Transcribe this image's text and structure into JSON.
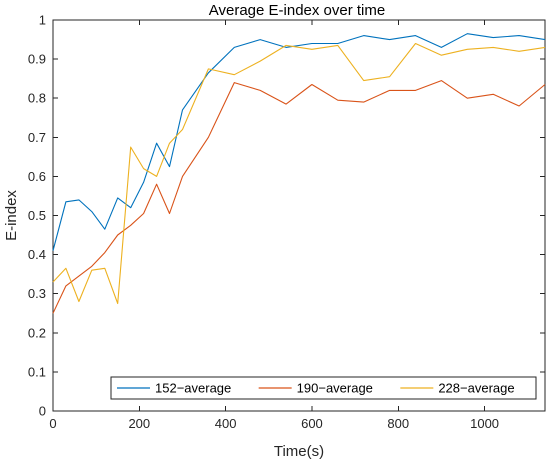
{
  "chart_data": {
    "type": "line",
    "title": "Average E-index over time",
    "xlabel": "Time(s)",
    "ylabel": "E-index",
    "xlim": [
      0,
      1140
    ],
    "ylim": [
      0,
      1
    ],
    "xticks": [
      0,
      200,
      400,
      600,
      800,
      1000
    ],
    "yticks": [
      0,
      0.1,
      0.2,
      0.3,
      0.4,
      0.5,
      0.6,
      0.7,
      0.8,
      0.9,
      1
    ],
    "xtick_labels": [
      "0",
      "200",
      "400",
      "600",
      "800",
      "1000"
    ],
    "ytick_labels": [
      "0",
      "0.1",
      "0.2",
      "0.3",
      "0.4",
      "0.5",
      "0.6",
      "0.7",
      "0.8",
      "0.9",
      "1"
    ],
    "grid": false,
    "legend_position": "bottom-right",
    "series": [
      {
        "name": "152−average",
        "color": "#0072BD",
        "x": [
          0,
          30,
          60,
          90,
          120,
          150,
          180,
          210,
          240,
          270,
          300,
          360,
          420,
          480,
          540,
          600,
          660,
          720,
          780,
          840,
          900,
          960,
          1020,
          1080,
          1140
        ],
        "y": [
          0.41,
          0.535,
          0.54,
          0.51,
          0.465,
          0.545,
          0.52,
          0.585,
          0.685,
          0.625,
          0.77,
          0.865,
          0.93,
          0.95,
          0.93,
          0.94,
          0.94,
          0.96,
          0.95,
          0.96,
          0.93,
          0.965,
          0.955,
          0.96,
          0.95
        ]
      },
      {
        "name": "190−average",
        "color": "#D95319",
        "x": [
          0,
          30,
          60,
          90,
          120,
          150,
          180,
          210,
          240,
          270,
          300,
          360,
          420,
          480,
          540,
          600,
          660,
          720,
          780,
          840,
          900,
          960,
          1020,
          1080,
          1140
        ],
        "y": [
          0.25,
          0.32,
          0.345,
          0.37,
          0.405,
          0.45,
          0.475,
          0.505,
          0.58,
          0.505,
          0.6,
          0.7,
          0.84,
          0.82,
          0.785,
          0.835,
          0.795,
          0.79,
          0.82,
          0.82,
          0.845,
          0.8,
          0.81,
          0.78,
          0.835
        ]
      },
      {
        "name": "228−average",
        "color": "#EDB120",
        "x": [
          0,
          30,
          60,
          90,
          120,
          150,
          180,
          210,
          240,
          270,
          300,
          360,
          420,
          480,
          540,
          600,
          660,
          720,
          780,
          840,
          900,
          960,
          1020,
          1080,
          1140
        ],
        "y": [
          0.33,
          0.365,
          0.28,
          0.36,
          0.365,
          0.275,
          0.675,
          0.62,
          0.6,
          0.685,
          0.72,
          0.875,
          0.86,
          0.895,
          0.935,
          0.925,
          0.935,
          0.845,
          0.855,
          0.94,
          0.91,
          0.925,
          0.93,
          0.92,
          0.93
        ]
      }
    ]
  }
}
